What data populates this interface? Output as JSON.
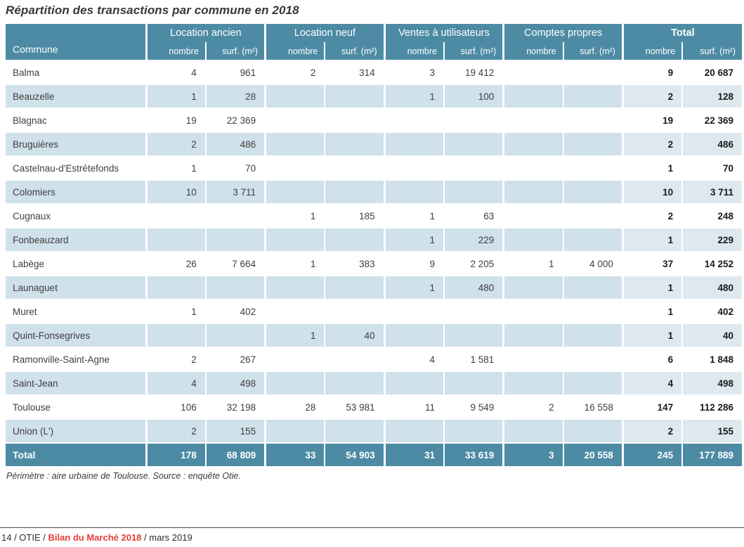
{
  "title": "Répartition des transactions par commune en 2018",
  "table": {
    "commune_header": "Commune",
    "groups": [
      {
        "label": "Location ancien"
      },
      {
        "label": "Location neuf"
      },
      {
        "label": "Ventes à utilisateurs"
      },
      {
        "label": "Comptes propres"
      },
      {
        "label": "Total"
      }
    ],
    "subheaders": {
      "nombre": "nombre",
      "surface": "surf. (m²)"
    },
    "rows": [
      {
        "commune": "Balma",
        "cells": [
          "4",
          "961",
          "2",
          "314",
          "3",
          "19 412",
          "",
          "",
          "9",
          "20 687"
        ]
      },
      {
        "commune": "Beauzelle",
        "cells": [
          "1",
          "28",
          "",
          "",
          "1",
          "100",
          "",
          "",
          "2",
          "128"
        ]
      },
      {
        "commune": "Blagnac",
        "cells": [
          "19",
          "22 369",
          "",
          "",
          "",
          "",
          "",
          "",
          "19",
          "22 369"
        ]
      },
      {
        "commune": "Bruguières",
        "cells": [
          "2",
          "486",
          "",
          "",
          "",
          "",
          "",
          "",
          "2",
          "486"
        ]
      },
      {
        "commune": "Castelnau-d'Estrétefonds",
        "cells": [
          "1",
          "70",
          "",
          "",
          "",
          "",
          "",
          "",
          "1",
          "70"
        ]
      },
      {
        "commune": "Colomiers",
        "cells": [
          "10",
          "3 711",
          "",
          "",
          "",
          "",
          "",
          "",
          "10",
          "3 711"
        ]
      },
      {
        "commune": "Cugnaux",
        "cells": [
          "",
          "",
          "1",
          "185",
          "1",
          "63",
          "",
          "",
          "2",
          "248"
        ]
      },
      {
        "commune": "Fonbeauzard",
        "cells": [
          "",
          "",
          "",
          "",
          "1",
          "229",
          "",
          "",
          "1",
          "229"
        ]
      },
      {
        "commune": "Labège",
        "cells": [
          "26",
          "7 664",
          "1",
          "383",
          "9",
          "2 205",
          "1",
          "4 000",
          "37",
          "14 252"
        ]
      },
      {
        "commune": "Launaguet",
        "cells": [
          "",
          "",
          "",
          "",
          "1",
          "480",
          "",
          "",
          "1",
          "480"
        ]
      },
      {
        "commune": "Muret",
        "cells": [
          "1",
          "402",
          "",
          "",
          "",
          "",
          "",
          "",
          "1",
          "402"
        ]
      },
      {
        "commune": "Quint-Fonsegrives",
        "cells": [
          "",
          "",
          "1",
          "40",
          "",
          "",
          "",
          "",
          "1",
          "40"
        ]
      },
      {
        "commune": "Ramonville-Saint-Agne",
        "cells": [
          "2",
          "267",
          "",
          "",
          "4",
          "1 581",
          "",
          "",
          "6",
          "1 848"
        ]
      },
      {
        "commune": "Saint-Jean",
        "cells": [
          "4",
          "498",
          "",
          "",
          "",
          "",
          "",
          "",
          "4",
          "498"
        ]
      },
      {
        "commune": "Toulouse",
        "cells": [
          "106",
          "32 198",
          "28",
          "53 981",
          "11",
          "9 549",
          "2",
          "16 558",
          "147",
          "112 286"
        ]
      },
      {
        "commune": "Union (L')",
        "cells": [
          "2",
          "155",
          "",
          "",
          "",
          "",
          "",
          "",
          "2",
          "155"
        ]
      }
    ],
    "total_row": {
      "label": "Total",
      "cells": [
        "178",
        "68 809",
        "33",
        "54 903",
        "31",
        "33 619",
        "3",
        "20 558",
        "245",
        "177 889"
      ]
    },
    "footnote": "Périmètre : aire urbaine de Toulouse. Source : enquête Otie."
  },
  "footer": {
    "left": "14 / OTIE / ",
    "highlight": "Bilan du Marché 2018",
    "right": " / mars 2019"
  },
  "colors": {
    "header_teal": "#4d8ba4",
    "stripe_blue": "#cfe1ea",
    "stripe_total_blue": "#dee9ef",
    "accent_red": "#e63f3a",
    "text_dark": "#3c3c3c"
  }
}
